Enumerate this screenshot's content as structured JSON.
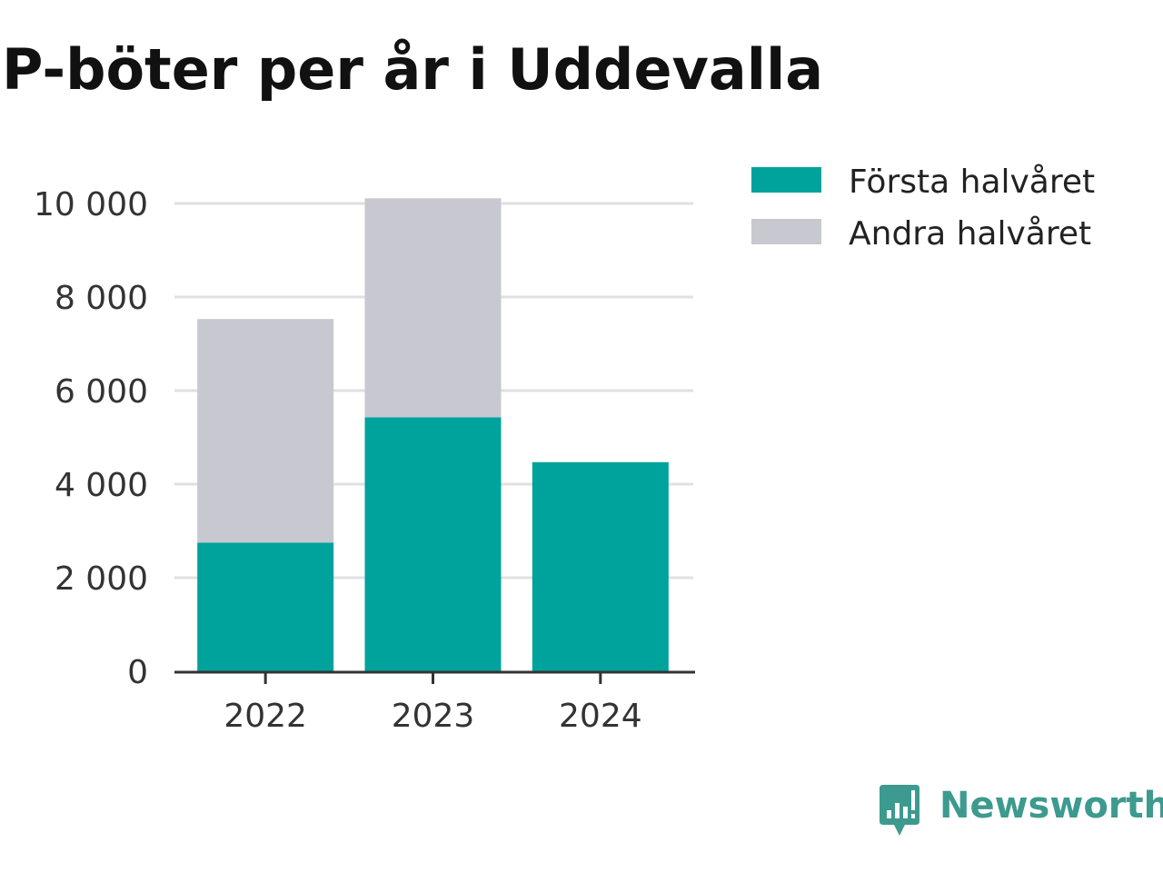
{
  "title": "P-böter per år i Uddevalla",
  "colors": {
    "first_half": "#00a39b",
    "second_half": "#c8c8d0",
    "grid": "#e0e0e4",
    "axis": "#333333",
    "brand": "#3d9a8f"
  },
  "chart_data": {
    "type": "bar",
    "stacked": true,
    "categories": [
      "2022",
      "2023",
      "2024"
    ],
    "series": [
      {
        "name": "Första halvåret",
        "values": [
          2750,
          5430,
          4470
        ],
        "color": "#00a39b"
      },
      {
        "name": "Andra halvåret",
        "values": [
          4780,
          4680,
          0
        ],
        "color": "#c8c8d0"
      }
    ],
    "ylim": [
      0,
      10000
    ],
    "yticks": [
      0,
      2000,
      4000,
      6000,
      8000,
      10000
    ],
    "ytick_labels": [
      "0",
      "2 000",
      "4 000",
      "6 000",
      "8 000",
      "10 000"
    ],
    "grid": true,
    "legend_position": "top-right",
    "xlabel": "",
    "ylabel": ""
  },
  "brand": {
    "name": "Newsworthy",
    "icon": "newsworthy-logo-icon"
  }
}
